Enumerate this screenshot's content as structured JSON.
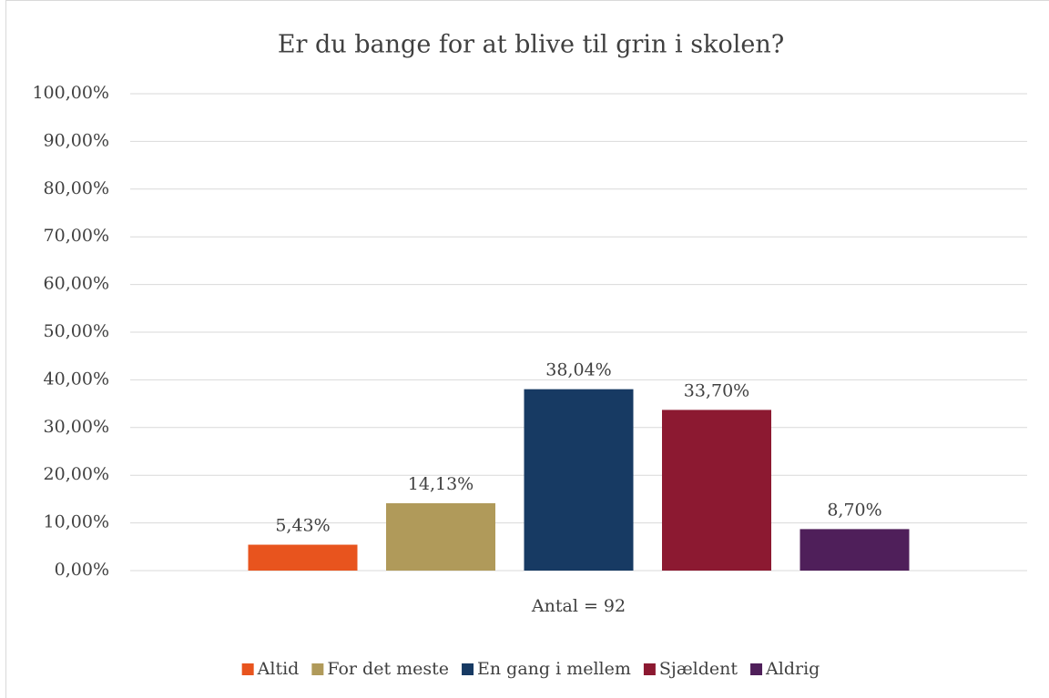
{
  "chart_data": {
    "type": "bar",
    "title": "Er du bange for at blive til grin i skolen?",
    "categories": [
      "Antal = 92"
    ],
    "series": [
      {
        "name": "Altid",
        "color": "#e8541e",
        "values": [
          5.43
        ],
        "value_labels": [
          "5,43%"
        ]
      },
      {
        "name": "For det meste",
        "color": "#b09a5a",
        "values": [
          14.13
        ],
        "value_labels": [
          "14,13%"
        ]
      },
      {
        "name": "En gang i mellem",
        "color": "#173a63",
        "values": [
          38.04
        ],
        "value_labels": [
          "38,04%"
        ]
      },
      {
        "name": "Sjældent",
        "color": "#8c1931",
        "values": [
          33.7
        ],
        "value_labels": [
          "33,70%"
        ]
      },
      {
        "name": "Aldrig",
        "color": "#4f1f5a",
        "values": [
          8.7
        ],
        "value_labels": [
          "8,70%"
        ]
      }
    ],
    "ylim": [
      0,
      100
    ],
    "yticks": [
      {
        "value": 0,
        "label": "0,00%"
      },
      {
        "value": 10,
        "label": "10,00%"
      },
      {
        "value": 20,
        "label": "20,00%"
      },
      {
        "value": 30,
        "label": "30,00%"
      },
      {
        "value": 40,
        "label": "40,00%"
      },
      {
        "value": 50,
        "label": "50,00%"
      },
      {
        "value": 60,
        "label": "60,00%"
      },
      {
        "value": 70,
        "label": "70,00%"
      },
      {
        "value": 80,
        "label": "80,00%"
      },
      {
        "value": 90,
        "label": "90,00%"
      },
      {
        "value": 100,
        "label": "100,00%"
      }
    ],
    "grid": true,
    "legend": "bottom"
  }
}
